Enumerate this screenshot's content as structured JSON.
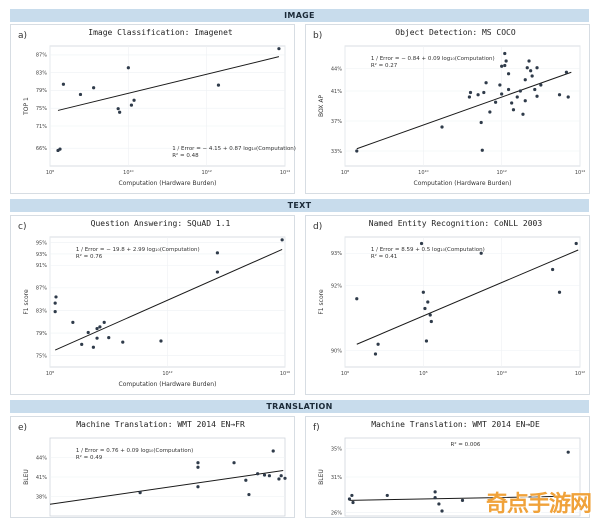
{
  "banners": {
    "image": "IMAGE",
    "text": "TEXT",
    "translation": "TRANSLATION"
  },
  "watermark": "奇点手游网",
  "chart_data": [
    {
      "type": "scatter",
      "letter": "a)",
      "title": "Image Classification: Imagenet",
      "xlabel": "Computation (Hardware Burden)",
      "ylabel": "TOP 1",
      "x_scale": "log",
      "xlim": [
        100000000.0,
        100000000000000.0
      ],
      "ylim": [
        62,
        89
      ],
      "xticks": [
        {
          "v": 100000000.0,
          "label": "10⁸"
        },
        {
          "v": 10000000000.0,
          "label": "10¹⁰"
        },
        {
          "v": 1000000000000.0,
          "label": "10¹²"
        },
        {
          "v": 100000000000000.0,
          "label": "10¹⁴"
        }
      ],
      "yticks": [
        {
          "v": 66,
          "label": "66%"
        },
        {
          "v": 71,
          "label": "71%"
        },
        {
          "v": 75,
          "label": "75%"
        },
        {
          "v": 79,
          "label": "79%"
        },
        {
          "v": 83,
          "label": "83%"
        },
        {
          "v": 87,
          "label": "87%"
        }
      ],
      "equation": "1 / Error = − 4.15 + 0.87 log₁₀(Computation)",
      "r2": "R² = 0.48",
      "eq_pos": "bottom-right",
      "points": [
        [
          160000000.0,
          65.5
        ],
        [
          180000000.0,
          65.8
        ],
        [
          220000000.0,
          80.4
        ],
        [
          600000000.0,
          78.1
        ],
        [
          1300000000.0,
          79.6
        ],
        [
          5500000000.0,
          74.9
        ],
        [
          6000000000.0,
          74.1
        ],
        [
          10000000000.0,
          84.1
        ],
        [
          12000000000.0,
          75.7
        ],
        [
          14000000000.0,
          76.8
        ],
        [
          2000000000000.0,
          80.2
        ],
        [
          70000000000000.0,
          88.4
        ]
      ],
      "fit": [
        [
          160000000.0,
          74.5
        ],
        [
          70000000000000.0,
          86.6
        ]
      ]
    },
    {
      "type": "scatter",
      "letter": "b)",
      "title": "Object Detection: MS COCO",
      "xlabel": "Computation (Hardware Burden)",
      "ylabel": "BOX AP",
      "x_scale": "log",
      "xlim": [
        100000000.0,
        100000000000000.0
      ],
      "ylim": [
        31,
        47
      ],
      "xticks": [
        {
          "v": 100000000.0,
          "label": "10⁸"
        },
        {
          "v": 10000000000.0,
          "label": "10¹⁰"
        },
        {
          "v": 1000000000000.0,
          "label": "10¹²"
        },
        {
          "v": 100000000000000.0,
          "label": "10¹⁴"
        }
      ],
      "yticks": [
        {
          "v": 33,
          "label": "33%"
        },
        {
          "v": 37,
          "label": "37%"
        },
        {
          "v": 41,
          "label": "41%"
        },
        {
          "v": 44,
          "label": "44%"
        }
      ],
      "equation": "1 / Error = − 0.84 + 0.09 log₁₀(Computation)",
      "r2": "R² = 0.27",
      "eq_pos": "top-left",
      "points": [
        [
          200000000.0,
          33
        ],
        [
          30000000000.0,
          36.2
        ],
        [
          150000000000.0,
          40.2
        ],
        [
          160000000000.0,
          40.8
        ],
        [
          250000000000.0,
          40.5
        ],
        [
          300000000000.0,
          36.8
        ],
        [
          320000000000.0,
          33.1
        ],
        [
          350000000000.0,
          40.8
        ],
        [
          400000000000.0,
          42.1
        ],
        [
          500000000000.0,
          38.2
        ],
        [
          700000000000.0,
          39.5
        ],
        [
          900000000000.0,
          41.8
        ],
        [
          1000000000000.0,
          44.3
        ],
        [
          1000000000000.0,
          40.6
        ],
        [
          1200000000000.0,
          46
        ],
        [
          1200000000000.0,
          44.4
        ],
        [
          1300000000000.0,
          45
        ],
        [
          1500000000000.0,
          43.3
        ],
        [
          1500000000000.0,
          41.2
        ],
        [
          1800000000000.0,
          39.4
        ],
        [
          2000000000000.0,
          38.5
        ],
        [
          2500000000000.0,
          40.2
        ],
        [
          3000000000000.0,
          41
        ],
        [
          3500000000000.0,
          37.9
        ],
        [
          4000000000000.0,
          42.5
        ],
        [
          4000000000000.0,
          39.7
        ],
        [
          4500000000000.0,
          44.1
        ],
        [
          5000000000000.0,
          45
        ],
        [
          5500000000000.0,
          43.7
        ],
        [
          6000000000000.0,
          43
        ],
        [
          7000000000000.0,
          41.2
        ],
        [
          8000000000000.0,
          40.3
        ],
        [
          8000000000000.0,
          44.1
        ],
        [
          10000000000000.0,
          41.8
        ],
        [
          30000000000000.0,
          40.5
        ],
        [
          45000000000000.0,
          43.5
        ],
        [
          50000000000000.0,
          40.2
        ]
      ],
      "fit": [
        [
          200000000.0,
          33.3
        ],
        [
          60000000000000.0,
          43.5
        ]
      ]
    },
    {
      "type": "scatter",
      "letter": "c)",
      "title": "Question Answering: SQuAD 1.1",
      "xlabel": "Computation (Hardware Burden)",
      "ylabel": "F1 score",
      "x_scale": "log",
      "xlim": [
        100000000.0,
        1e+16
      ],
      "ylim": [
        73,
        96
      ],
      "xticks": [
        {
          "v": 100000000.0,
          "label": "10⁸"
        },
        {
          "v": 1000000000000.0,
          "label": "10¹²"
        },
        {
          "v": 1e+16,
          "label": "10¹⁶"
        }
      ],
      "yticks": [
        {
          "v": 75,
          "label": "75%"
        },
        {
          "v": 79,
          "label": "79%"
        },
        {
          "v": 83,
          "label": "83%"
        },
        {
          "v": 87,
          "label": "87%"
        },
        {
          "v": 91,
          "label": "91%"
        },
        {
          "v": 93,
          "label": "93%"
        },
        {
          "v": 95,
          "label": "95%"
        }
      ],
      "equation": "1 / Error = − 19.8 + 2.99 log₁₀(Computation)",
      "r2": "R² = 0.76",
      "eq_pos": "top-left",
      "points": [
        [
          150000000.0,
          82.8
        ],
        [
          150000000.0,
          84.3
        ],
        [
          160000000.0,
          85.4
        ],
        [
          600000000.0,
          80.9
        ],
        [
          1200000000.0,
          77
        ],
        [
          2000000000.0,
          79.1
        ],
        [
          3000000000.0,
          76.5
        ],
        [
          4000000000.0,
          78.1
        ],
        [
          4000000000.0,
          79.8
        ],
        [
          5000000000.0,
          80.1
        ],
        [
          7000000000.0,
          80.9
        ],
        [
          10000000000.0,
          78.2
        ],
        [
          30000000000.0,
          77.4
        ],
        [
          600000000000.0,
          77.6
        ],
        [
          50000000000000.0,
          89.8
        ],
        [
          50000000000000.0,
          93.2
        ],
        [
          8000000000000000.0,
          95.5
        ]
      ],
      "fit": [
        [
          150000000.0,
          76
        ],
        [
          8000000000000000.0,
          93.8
        ]
      ]
    },
    {
      "type": "scatter",
      "letter": "d)",
      "title": "Named Entity Recognition: CoNLL 2003",
      "xlabel": "",
      "ylabel": "F1 score",
      "x_scale": "log",
      "xlim": [
        1000000.0,
        1000000000000.0
      ],
      "ylim": [
        89.5,
        93.5
      ],
      "xticks": [
        {
          "v": 1000000.0,
          "label": "10⁶"
        },
        {
          "v": 100000000.0,
          "label": "10⁸"
        },
        {
          "v": 10000000000.0,
          "label": "10¹⁰"
        },
        {
          "v": 1000000000000.0,
          "label": "10¹²"
        }
      ],
      "yticks": [
        {
          "v": 90,
          "label": "90%"
        },
        {
          "v": 92,
          "label": "92%"
        },
        {
          "v": 93,
          "label": "93%"
        }
      ],
      "equation": "1 / Error = 8.59 + 0.5 log₁₀(Computation)",
      "r2": "R² = 0.41",
      "eq_pos": "top-left",
      "points": [
        [
          2000000.0,
          91.6
        ],
        [
          6000000.0,
          89.9
        ],
        [
          7000000.0,
          90.2
        ],
        [
          90000000.0,
          93.3
        ],
        [
          100000000.0,
          91.8
        ],
        [
          110000000.0,
          91.3
        ],
        [
          120000000.0,
          90.3
        ],
        [
          130000000.0,
          91.5
        ],
        [
          150000000.0,
          91.1
        ],
        [
          160000000.0,
          90.9
        ],
        [
          3000000000.0,
          93
        ],
        [
          200000000000.0,
          92.5
        ],
        [
          300000000000.0,
          91.8
        ],
        [
          800000000000.0,
          93.3
        ]
      ],
      "fit": [
        [
          2000000.0,
          90.2
        ],
        [
          900000000000.0,
          93.1
        ]
      ]
    },
    {
      "type": "scatter",
      "letter": "e)",
      "title": "Machine Translation: WMT 2014 EN→FR",
      "xlabel": "",
      "ylabel": "BLEU",
      "x_scale": "log",
      "xlim": [
        100000000.0,
        100000000000000.0
      ],
      "ylim": [
        35,
        47
      ],
      "xticks": [],
      "yticks": [
        {
          "v": 38,
          "label": "38%"
        },
        {
          "v": 41,
          "label": "41%"
        },
        {
          "v": 44,
          "label": "44%"
        }
      ],
      "equation": "1 / Error = 0.76 + 0.09 log₁₀(Computation)",
      "r2": "R² = 0.49",
      "eq_pos": "top-left",
      "points": [
        [
          20000000000.0,
          38.6
        ],
        [
          600000000000.0,
          39.5
        ],
        [
          600000000000.0,
          42.5
        ],
        [
          600000000000.0,
          43.2
        ],
        [
          5000000000000.0,
          43.2
        ],
        [
          10000000000000.0,
          40.5
        ],
        [
          12000000000000.0,
          38.3
        ],
        [
          20000000000000.0,
          41.5
        ],
        [
          30000000000000.0,
          41.3
        ],
        [
          40000000000000.0,
          41.2
        ],
        [
          50000000000000.0,
          45
        ],
        [
          70000000000000.0,
          40.7
        ],
        [
          80000000000000.0,
          41.2
        ],
        [
          100000000000000.0,
          40.8
        ]
      ],
      "fit": [
        [
          100000000.0,
          36.8
        ],
        [
          90000000000000.0,
          42
        ]
      ]
    },
    {
      "type": "scatter",
      "letter": "f)",
      "title": "Machine Translation: WMT 2014 EN→DE",
      "xlabel": "",
      "ylabel": "BLEU",
      "x_scale": "log",
      "xlim": [
        100000000.0,
        100000000000000.0
      ],
      "ylim": [
        25.5,
        36.5
      ],
      "xticks": [],
      "yticks": [
        {
          "v": 26,
          "label": "26%"
        },
        {
          "v": 31,
          "label": "31%"
        },
        {
          "v": 35,
          "label": "35%"
        }
      ],
      "equation": "",
      "r2": "R² = 0.006",
      "eq_pos": "top-center",
      "points": [
        [
          130000000.0,
          27.9
        ],
        [
          150000000.0,
          28.4
        ],
        [
          160000000.0,
          27.4
        ],
        [
          1200000000.0,
          28.4
        ],
        [
          20000000000.0,
          28.9
        ],
        [
          20000000000.0,
          28.1
        ],
        [
          25000000000.0,
          27.2
        ],
        [
          30000000000.0,
          26.2
        ],
        [
          100000000000.0,
          27.7
        ],
        [
          50000000000000.0,
          34.5
        ]
      ],
      "fit": [
        [
          130000000.0,
          27.7
        ],
        [
          60000000000000.0,
          28.3
        ]
      ]
    }
  ]
}
